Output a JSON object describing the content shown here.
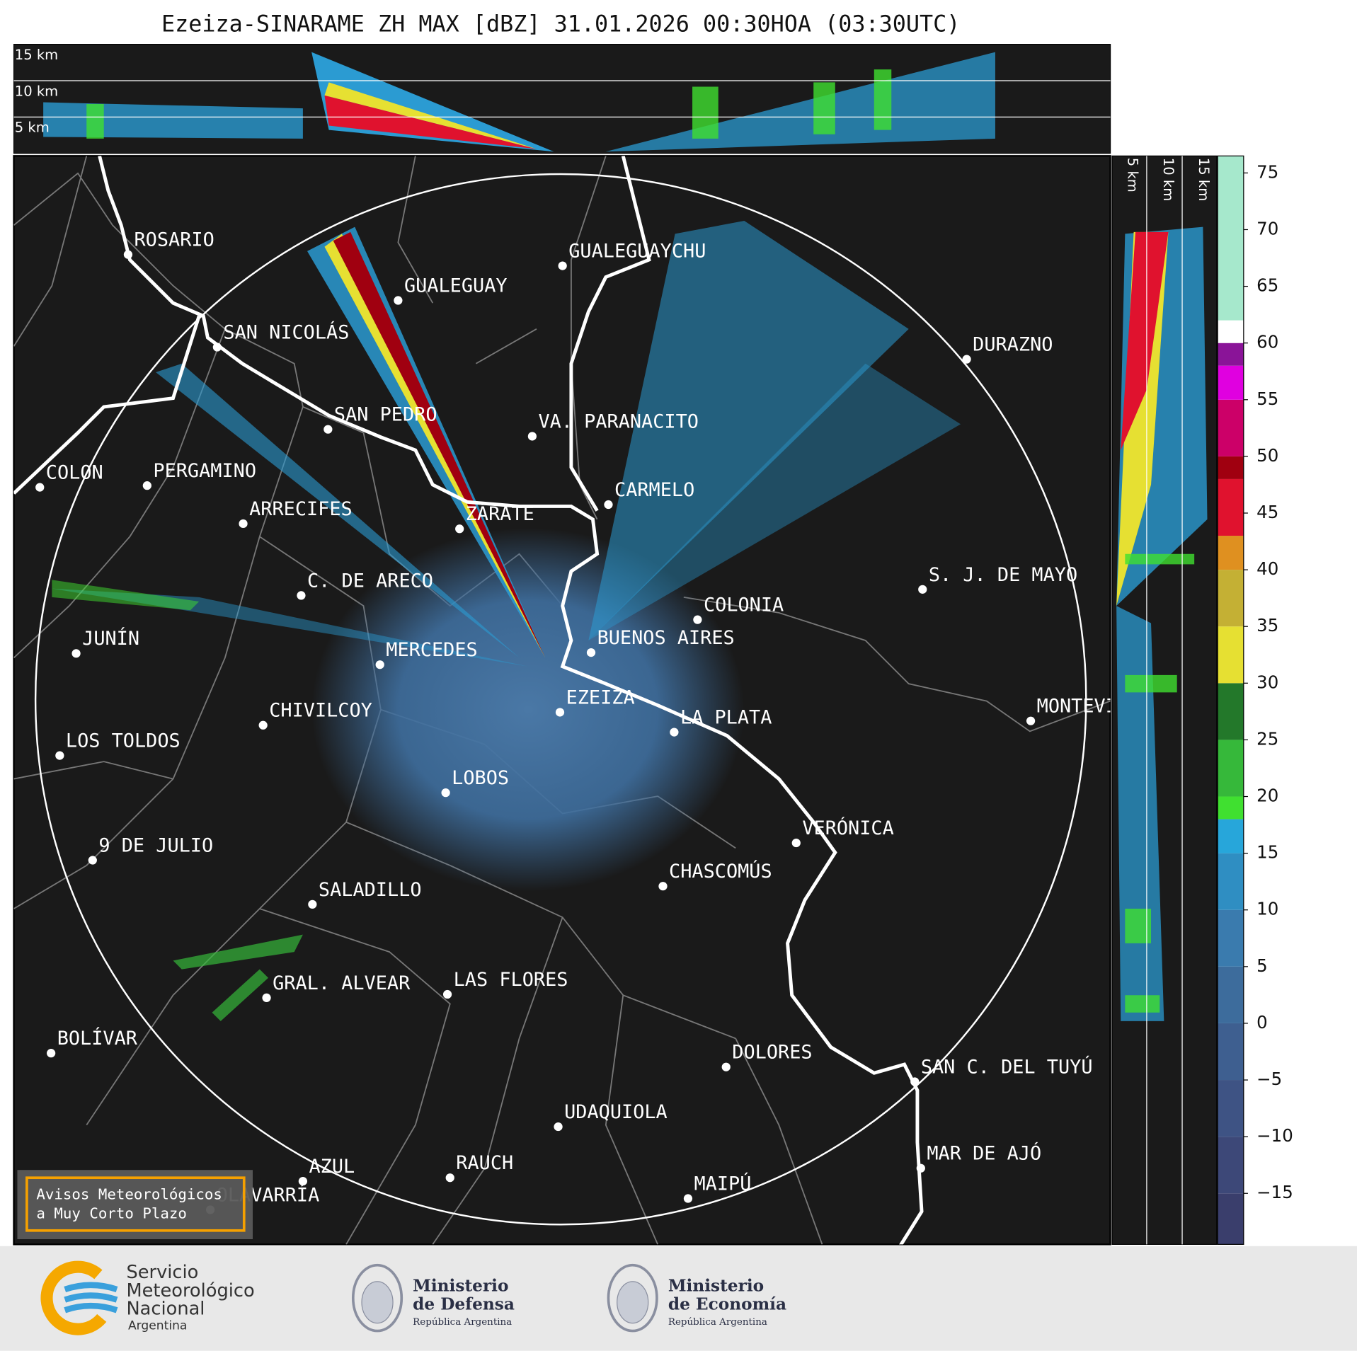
{
  "title": "Ezeiza-SINARAME ZH MAX [dBZ] 31.01.2026 00:30HOA (03:30UTC)",
  "vertical_panel": {
    "labels": [
      "15 km",
      "10 km",
      "5 km"
    ]
  },
  "side_panel": {
    "labels": [
      "5 km",
      "10 km",
      "15 km"
    ]
  },
  "cities": [
    "ROSARIO",
    "GUALEGUAYCHU",
    "GUALEGUAY",
    "SAN NICOLÁS",
    "DURAZNO",
    "SAN PEDRO",
    "VA. PARANACITO",
    "COLON",
    "PERGAMINO",
    "CARMELO",
    "ARRECIFES",
    "ZÁRATE",
    "S. J. DE MAYO",
    "C. DE ARECO",
    "COLONIA",
    "BUENOS AIRES",
    "JUNÍN",
    "MERCEDES",
    "EZEIZA",
    "MONTEVIDEO",
    "LA PLATA",
    "CHIVILCOY",
    "LOS TOLDOS",
    "LOBOS",
    "VERÓNICA",
    "9 DE JULIO",
    "CHASCOMÚS",
    "SALADILLO",
    "GRAL. ALVEAR",
    "LAS FLORES",
    "BOLÍVAR",
    "DOLORES",
    "SAN C. DEL TUYÚ",
    "UDAQUIOLA",
    "MAR DE AJÓ",
    "RAUCH",
    "AZUL",
    "MAIPÚ",
    "OLAVARRÍA"
  ],
  "colorbar": {
    "lim": [
      -19.5,
      76.5
    ],
    "ticks": [
      75,
      70,
      65,
      60,
      55,
      50,
      45,
      40,
      35,
      30,
      25,
      20,
      15,
      10,
      5,
      0,
      {
        "value": -5,
        "label": "−5"
      },
      {
        "value": -10,
        "label": "−10"
      },
      {
        "value": -15,
        "label": "−15"
      }
    ],
    "bounds": [
      -19.5,
      -15,
      -10,
      -5,
      0,
      5,
      10,
      15,
      18,
      20,
      25,
      30,
      35,
      40,
      43,
      48,
      50,
      55,
      58,
      60,
      62,
      76.5
    ],
    "colors": [
      "#3a3e6c",
      "#3d4878",
      "#3e5384",
      "#3e5f90",
      "#3d6c9c",
      "#3a7bae",
      "#2f8ec2",
      "#27a6da",
      "#40e030",
      "#36b83a",
      "#23782a",
      "#e6e032",
      "#c4b034",
      "#df9020",
      "#e0122e",
      "#a00010",
      "#cc0068",
      "#e000e0",
      "#8a1498",
      "#ffffff",
      "#a6e8cc"
    ]
  },
  "warning": {
    "lines": [
      "Avisos Meteorológicos",
      "a Muy Corto Plazo"
    ]
  },
  "footer": {
    "smn": [
      "Servicio",
      "Meteorológico",
      "Nacional",
      "Argentina"
    ],
    "defensa": [
      "Ministerio",
      "de Defensa",
      "República Argentina"
    ],
    "economia": [
      "Ministerio",
      "de Economía",
      "República Argentina"
    ]
  }
}
